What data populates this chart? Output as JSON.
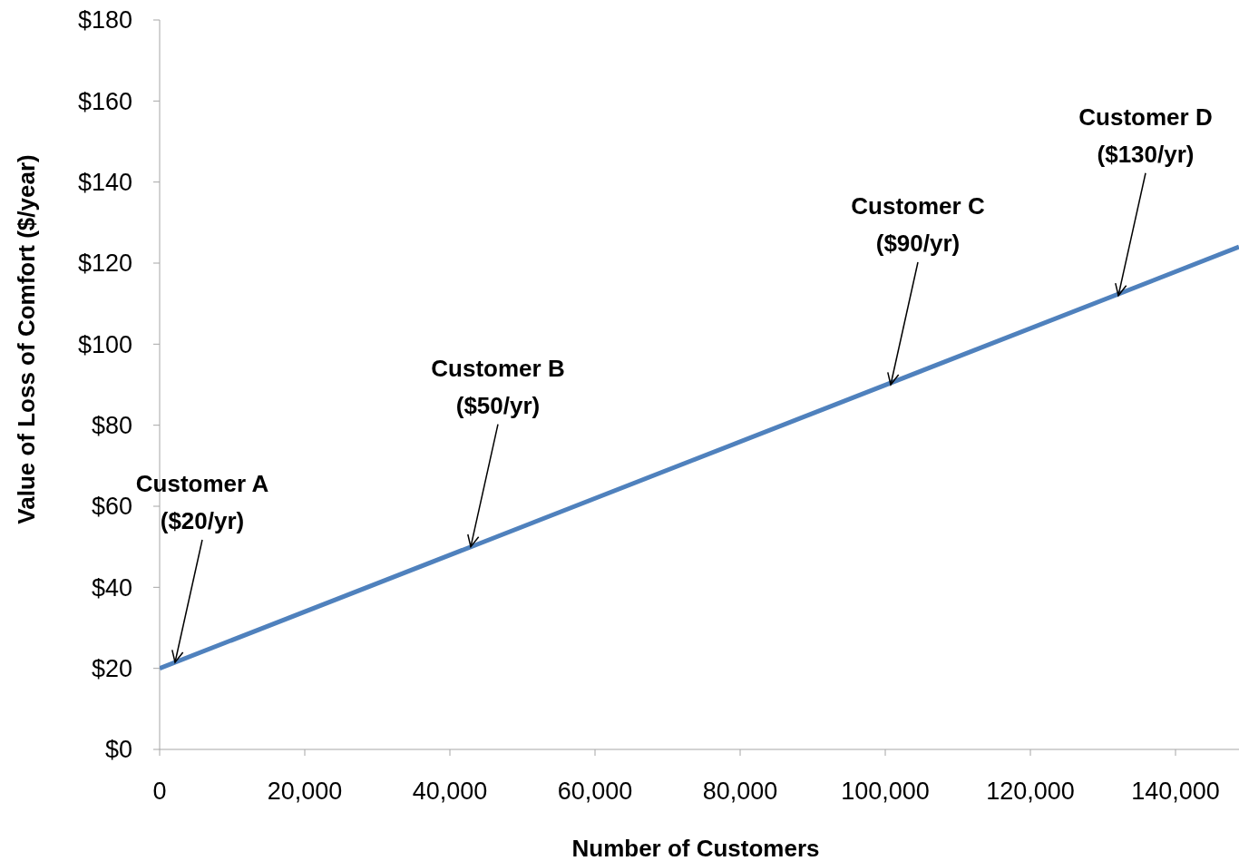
{
  "chart_data": {
    "type": "line",
    "xlabel": "Number of Customers",
    "ylabel": "Value of Loss of Comfort ($/year)",
    "x": [
      0,
      148750
    ],
    "series": [
      {
        "color": "#4f81bd",
        "values": [
          20,
          124
        ]
      }
    ],
    "xlim": [
      0,
      148750
    ],
    "xticks": [
      {
        "value": 0,
        "label": "0"
      },
      {
        "value": 20000,
        "label": "20,000"
      },
      {
        "value": 40000,
        "label": "40,000"
      },
      {
        "value": 60000,
        "label": "60,000"
      },
      {
        "value": 80000,
        "label": "80,000"
      },
      {
        "value": 100000,
        "label": "100,000"
      },
      {
        "value": 120000,
        "label": "120,000"
      },
      {
        "value": 140000,
        "label": "140,000"
      }
    ],
    "ylim": [
      0,
      180
    ],
    "yticks": [
      {
        "value": 0,
        "label": "$0"
      },
      {
        "value": 20,
        "label": "$20"
      },
      {
        "value": 40,
        "label": "$40"
      },
      {
        "value": 60,
        "label": "$60"
      },
      {
        "value": 80,
        "label": "$80"
      },
      {
        "value": 100,
        "label": "$100"
      },
      {
        "value": 120,
        "label": "$120"
      },
      {
        "value": 140,
        "label": "$140"
      },
      {
        "value": 160,
        "label": "$160"
      },
      {
        "value": 180,
        "label": "$180"
      }
    ],
    "grid": false,
    "marker": "none",
    "line_style": "solid",
    "annotations": [
      {
        "text": "Customer A\n($20/yr)",
        "x": 2125,
        "y": 21.5
      },
      {
        "text": "Customer B\n($50/yr)",
        "x": 42875,
        "y": 50
      },
      {
        "text": "Customer C\n($90/yr)",
        "x": 100750,
        "y": 90
      },
      {
        "text": "Customer D\n($130/yr)",
        "x": 132125,
        "y": 112
      }
    ]
  }
}
